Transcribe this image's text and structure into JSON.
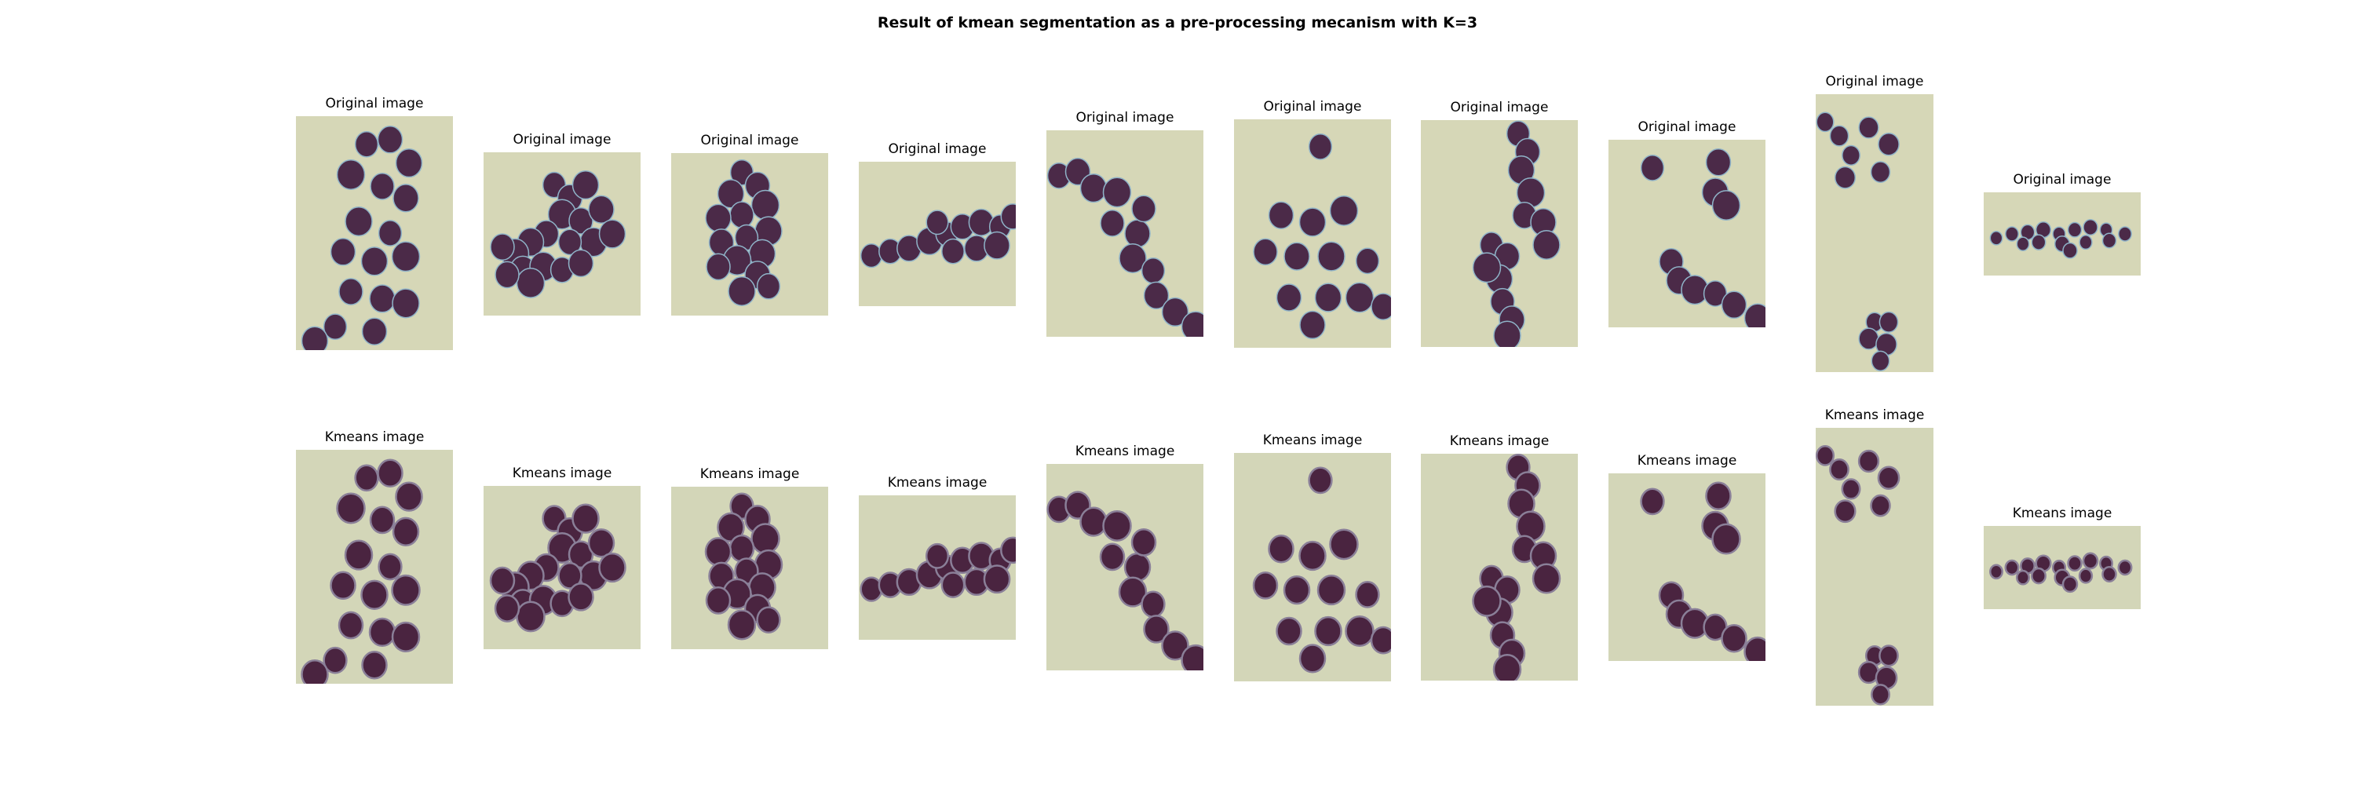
{
  "figure": {
    "title": "Result of kmean segmentation as a pre-processing mecanism with K=3"
  },
  "rows": [
    {
      "panel_title": "Original image",
      "kind": "original",
      "background": "#d6d7b7",
      "cell_color": "#4b2a48",
      "rim_color": "#8fb3c8"
    },
    {
      "panel_title": "Kmeans image",
      "kind": "kmeans",
      "background": "#d3d6b8",
      "cell_color": "#4a2440",
      "rim_color": "#8a7f98"
    }
  ],
  "panels": [
    {
      "id": "1"
    },
    {
      "id": "2"
    },
    {
      "id": "3"
    },
    {
      "id": "4"
    },
    {
      "id": "5"
    },
    {
      "id": "6"
    },
    {
      "id": "7"
    },
    {
      "id": "8"
    },
    {
      "id": "9"
    },
    {
      "id": "10"
    }
  ]
}
